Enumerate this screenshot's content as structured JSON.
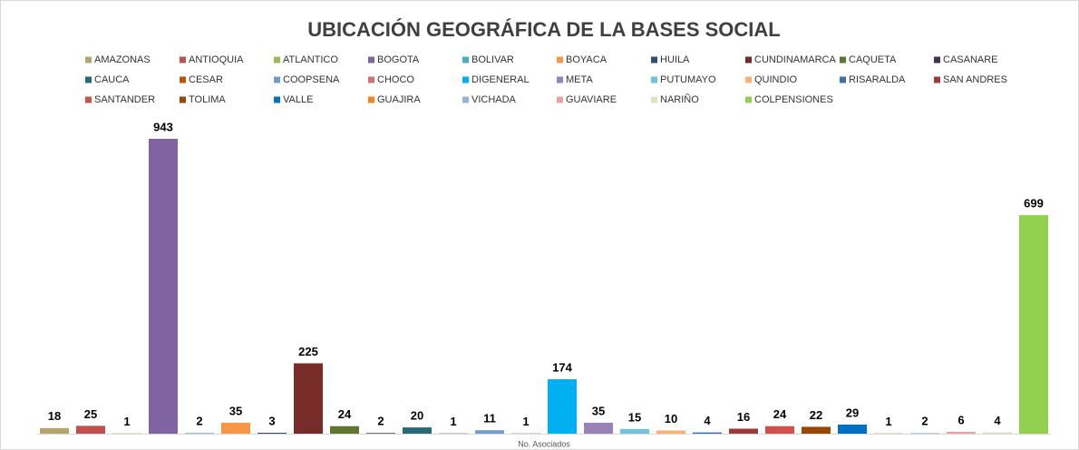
{
  "chart_data": {
    "type": "bar",
    "title": "UBICACIÓN GEOGRÁFICA DE LA BASES SOCIAL",
    "categories": [
      "No. Asociados"
    ],
    "series": [
      {
        "name": "AMAZONAS",
        "color": "#b5a46b",
        "values": [
          18
        ]
      },
      {
        "name": "ANTIOQUIA",
        "color": "#c0504d",
        "values": [
          25
        ]
      },
      {
        "name": "ATLANTICO",
        "color": "#9bbb59",
        "values": [
          1
        ]
      },
      {
        "name": "BOGOTA",
        "color": "#8064a2",
        "values": [
          943
        ]
      },
      {
        "name": "BOLIVAR",
        "color": "#4bacc6",
        "values": [
          2
        ]
      },
      {
        "name": "BOYACA",
        "color": "#f79646",
        "values": [
          35
        ]
      },
      {
        "name": "HUILA",
        "color": "#2c4d75",
        "values": [
          3
        ]
      },
      {
        "name": "CUNDINAMARCA",
        "color": "#772c2a",
        "values": [
          225
        ]
      },
      {
        "name": "CAQUETA",
        "color": "#5f7530",
        "values": [
          24
        ]
      },
      {
        "name": "CASANARE",
        "color": "#403151",
        "values": [
          2
        ]
      },
      {
        "name": "CAUCA",
        "color": "#276a7c",
        "values": [
          20
        ]
      },
      {
        "name": "CESAR",
        "color": "#b65708",
        "values": [
          1
        ]
      },
      {
        "name": "COOPSENA",
        "color": "#729aca",
        "values": [
          11
        ]
      },
      {
        "name": "CHOCO",
        "color": "#cd7371",
        "values": [
          1
        ]
      },
      {
        "name": "DIGENERAL",
        "color": "#00b0f0",
        "values": [
          174
        ]
      },
      {
        "name": "META",
        "color": "#9983b5",
        "values": [
          35
        ]
      },
      {
        "name": "PUTUMAYO",
        "color": "#6ec5d8",
        "values": [
          15
        ]
      },
      {
        "name": "QUINDIO",
        "color": "#f9b074",
        "values": [
          10
        ]
      },
      {
        "name": "RISARALDA",
        "color": "#3d6fa8",
        "values": [
          4
        ]
      },
      {
        "name": "SAN ANDRES",
        "color": "#9b3b38",
        "values": [
          16
        ]
      },
      {
        "name": "SANTANDER",
        "color": "#d0504d",
        "values": [
          24
        ]
      },
      {
        "name": "TOLIMA",
        "color": "#974706",
        "values": [
          22
        ]
      },
      {
        "name": "VALLE",
        "color": "#0070c0",
        "values": [
          29
        ]
      },
      {
        "name": "GUAJIRA",
        "color": "#f58220",
        "values": [
          1
        ]
      },
      {
        "name": "VICHADA",
        "color": "#95b3d7",
        "values": [
          2
        ]
      },
      {
        "name": "GUAVIARE",
        "color": "#e6a5a5",
        "values": [
          6
        ]
      },
      {
        "name": "NARIÑO",
        "color": "#d7e4bd",
        "values": [
          4
        ]
      },
      {
        "name": "COLPENSIONES",
        "color": "#92d050",
        "values": [
          699
        ]
      }
    ]
  }
}
